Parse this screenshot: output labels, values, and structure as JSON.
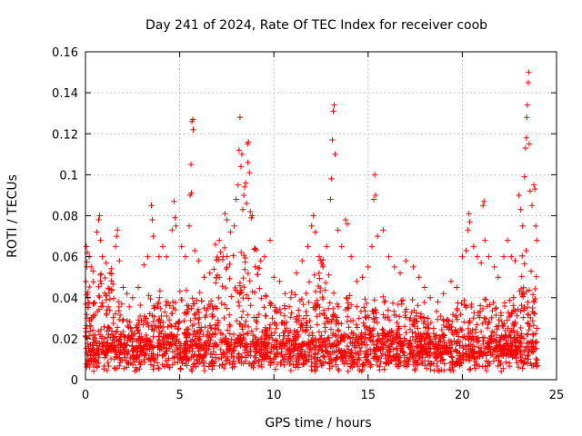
{
  "chart_data": {
    "type": "scatter",
    "title": "Day 241 of 2024, Rate Of TEC Index for receiver coob",
    "xlabel": "GPS time / hours",
    "ylabel": "ROTI / TECUs",
    "xlim": [
      0,
      25
    ],
    "ylim": [
      0,
      0.16
    ],
    "xticks": [
      0,
      5,
      10,
      15,
      20,
      25
    ],
    "yticks": [
      0,
      0.02,
      0.04,
      0.06,
      0.08,
      0.1,
      0.12,
      0.14,
      0.16
    ],
    "grid": true,
    "marker": "+",
    "color": "#ff0000",
    "series": [
      {
        "name": "ROTI",
        "points": [
          [
            0.05,
            0.065
          ],
          [
            0.1,
            0.062
          ],
          [
            0.2,
            0.06
          ],
          [
            0.3,
            0.055
          ],
          [
            0.4,
            0.053
          ],
          [
            0.6,
            0.072
          ],
          [
            0.7,
            0.078
          ],
          [
            0.75,
            0.08
          ],
          [
            0.8,
            0.068
          ],
          [
            0.9,
            0.06
          ],
          [
            1.1,
            0.057
          ],
          [
            1.3,
            0.052
          ],
          [
            1.6,
            0.065
          ],
          [
            1.65,
            0.07
          ],
          [
            1.7,
            0.073
          ],
          [
            1.8,
            0.058
          ],
          [
            2.0,
            0.045
          ],
          [
            2.2,
            0.042
          ],
          [
            2.5,
            0.04
          ],
          [
            2.8,
            0.045
          ],
          [
            3.1,
            0.056
          ],
          [
            3.3,
            0.06
          ],
          [
            3.5,
            0.085
          ],
          [
            3.55,
            0.078
          ],
          [
            3.6,
            0.07
          ],
          [
            3.9,
            0.06
          ],
          [
            4.1,
            0.065
          ],
          [
            4.3,
            0.06
          ],
          [
            4.6,
            0.073
          ],
          [
            4.7,
            0.087
          ],
          [
            4.75,
            0.079
          ],
          [
            4.8,
            0.075
          ],
          [
            5.1,
            0.065
          ],
          [
            5.3,
            0.06
          ],
          [
            5.5,
            0.075
          ],
          [
            5.55,
            0.09
          ],
          [
            5.6,
            0.105
          ],
          [
            5.62,
            0.091
          ],
          [
            5.65,
            0.126
          ],
          [
            5.7,
            0.127
          ],
          [
            5.72,
            0.122
          ],
          [
            5.8,
            0.063
          ],
          [
            6.0,
            0.058
          ],
          [
            6.3,
            0.05
          ],
          [
            6.6,
            0.052
          ],
          [
            6.9,
            0.066
          ],
          [
            7.1,
            0.068
          ],
          [
            7.3,
            0.06
          ],
          [
            7.4,
            0.081
          ],
          [
            7.5,
            0.078
          ],
          [
            7.7,
            0.072
          ],
          [
            7.9,
            0.075
          ],
          [
            8.0,
            0.088
          ],
          [
            8.1,
            0.095
          ],
          [
            8.15,
            0.112
          ],
          [
            8.2,
            0.128
          ],
          [
            8.25,
            0.104
          ],
          [
            8.3,
            0.11
          ],
          [
            8.35,
            0.083
          ],
          [
            8.4,
            0.09
          ],
          [
            8.45,
            0.094
          ],
          [
            8.5,
            0.096
          ],
          [
            8.55,
            0.086
          ],
          [
            8.6,
            0.115
          ],
          [
            8.62,
            0.106
          ],
          [
            8.65,
            0.116
          ],
          [
            8.7,
            0.101
          ],
          [
            8.75,
            0.082
          ],
          [
            8.8,
            0.079
          ],
          [
            8.85,
            0.08
          ],
          [
            9.0,
            0.064
          ],
          [
            9.3,
            0.058
          ],
          [
            9.5,
            0.06
          ],
          [
            9.8,
            0.068
          ],
          [
            10.0,
            0.05
          ],
          [
            10.3,
            0.048
          ],
          [
            10.6,
            0.042
          ],
          [
            10.9,
            0.04
          ],
          [
            11.2,
            0.052
          ],
          [
            11.5,
            0.058
          ],
          [
            11.8,
            0.065
          ],
          [
            12.0,
            0.075
          ],
          [
            12.1,
            0.08
          ],
          [
            12.2,
            0.072
          ],
          [
            12.4,
            0.06
          ],
          [
            12.6,
            0.055
          ],
          [
            12.8,
            0.065
          ],
          [
            13.0,
            0.088
          ],
          [
            13.05,
            0.098
          ],
          [
            13.1,
            0.117
          ],
          [
            13.15,
            0.131
          ],
          [
            13.2,
            0.134
          ],
          [
            13.25,
            0.11
          ],
          [
            13.4,
            0.073
          ],
          [
            13.6,
            0.065
          ],
          [
            13.8,
            0.078
          ],
          [
            13.9,
            0.076
          ],
          [
            14.1,
            0.06
          ],
          [
            14.4,
            0.048
          ],
          [
            14.7,
            0.05
          ],
          [
            15.0,
            0.055
          ],
          [
            15.2,
            0.065
          ],
          [
            15.3,
            0.088
          ],
          [
            15.35,
            0.1
          ],
          [
            15.4,
            0.09
          ],
          [
            15.5,
            0.07
          ],
          [
            15.8,
            0.073
          ],
          [
            16.1,
            0.06
          ],
          [
            16.4,
            0.055
          ],
          [
            16.7,
            0.052
          ],
          [
            17.0,
            0.058
          ],
          [
            17.4,
            0.055
          ],
          [
            17.7,
            0.05
          ],
          [
            18.0,
            0.045
          ],
          [
            18.3,
            0.04
          ],
          [
            18.7,
            0.038
          ],
          [
            19.0,
            0.042
          ],
          [
            19.4,
            0.048
          ],
          [
            19.7,
            0.045
          ],
          [
            20.0,
            0.06
          ],
          [
            20.2,
            0.063
          ],
          [
            20.3,
            0.073
          ],
          [
            20.35,
            0.081
          ],
          [
            20.4,
            0.077
          ],
          [
            20.6,
            0.065
          ],
          [
            20.8,
            0.06
          ],
          [
            21.0,
            0.057
          ],
          [
            21.1,
            0.085
          ],
          [
            21.15,
            0.087
          ],
          [
            21.2,
            0.068
          ],
          [
            21.4,
            0.06
          ],
          [
            21.7,
            0.055
          ],
          [
            21.9,
            0.05
          ],
          [
            22.2,
            0.06
          ],
          [
            22.4,
            0.068
          ],
          [
            22.6,
            0.06
          ],
          [
            22.8,
            0.058
          ],
          [
            23.0,
            0.09
          ],
          [
            23.1,
            0.083
          ],
          [
            23.2,
            0.075
          ],
          [
            23.3,
            0.099
          ],
          [
            23.35,
            0.113
          ],
          [
            23.4,
            0.118
          ],
          [
            23.42,
            0.128
          ],
          [
            23.45,
            0.134
          ],
          [
            23.5,
            0.145
          ],
          [
            23.52,
            0.15
          ],
          [
            23.55,
            0.115
          ],
          [
            23.6,
            0.092
          ],
          [
            23.7,
            0.085
          ],
          [
            23.8,
            0.095
          ],
          [
            23.85,
            0.093
          ],
          [
            23.9,
            0.075
          ],
          [
            23.95,
            0.068
          ]
        ]
      }
    ]
  }
}
